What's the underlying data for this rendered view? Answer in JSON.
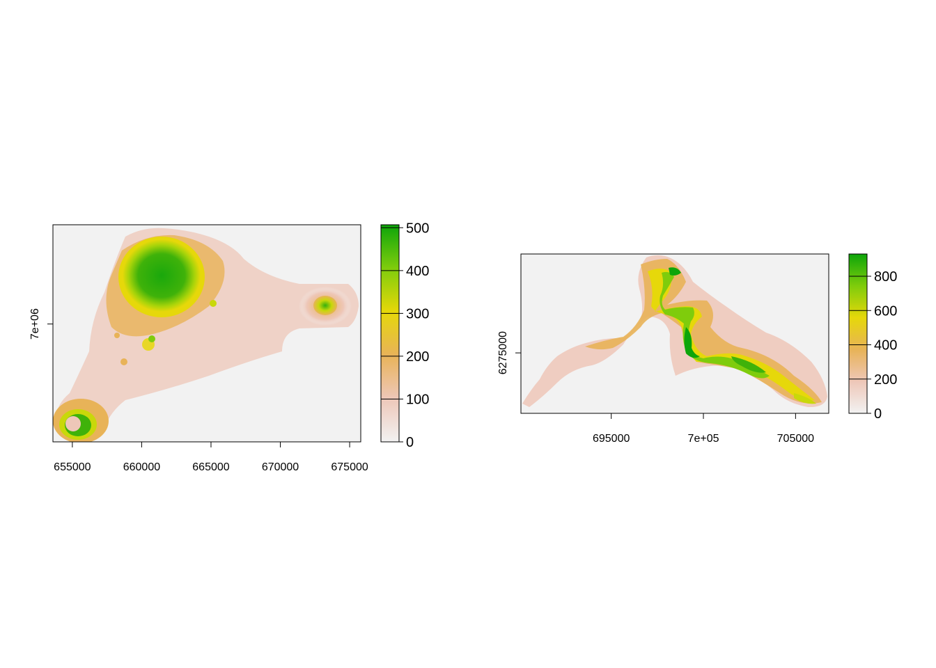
{
  "chart_data": [
    {
      "type": "heatmap",
      "title": "",
      "xlabel": "",
      "ylabel": "",
      "x_ticks": [
        655000,
        660000,
        665000,
        670000,
        675000
      ],
      "x_tick_labels": [
        "655000",
        "660000",
        "665000",
        "670000",
        "675000"
      ],
      "y_ticks": [
        7000000
      ],
      "y_tick_labels": [
        "7e+06"
      ],
      "xlim": [
        653600,
        675800
      ],
      "ylim": [
        6992400,
        7006400
      ],
      "value_range": [
        0,
        507
      ],
      "legend_ticks": [
        0,
        100,
        200,
        300,
        400,
        500
      ],
      "legend_tick_labels": [
        "0",
        "100",
        "200",
        "300",
        "400",
        "500"
      ],
      "legend_placement": "right",
      "colors": [
        "#f2f2f2",
        "#eec7b8",
        "#e8b358",
        "#e6d80a",
        "#7fcc0c",
        "#0da50a"
      ],
      "grid": false
    },
    {
      "type": "heatmap",
      "title": "",
      "xlabel": "",
      "ylabel": "",
      "x_ticks": [
        695000,
        700000,
        705000
      ],
      "x_tick_labels": [
        "695000",
        "7e+05",
        "705000"
      ],
      "y_ticks": [
        6275000
      ],
      "y_tick_labels": [
        "6275000"
      ],
      "xlim": [
        690100,
        706800
      ],
      "ylim": [
        6271700,
        6280400
      ],
      "value_range": [
        0,
        930
      ],
      "legend_ticks": [
        0,
        200,
        400,
        600,
        800
      ],
      "legend_tick_labels": [
        "0",
        "200",
        "400",
        "600",
        "800"
      ],
      "legend_placement": "right",
      "colors": [
        "#f2f2f2",
        "#eec7b8",
        "#e8b358",
        "#e6d80a",
        "#7fcc0c",
        "#0da50a"
      ],
      "grid": false
    }
  ]
}
